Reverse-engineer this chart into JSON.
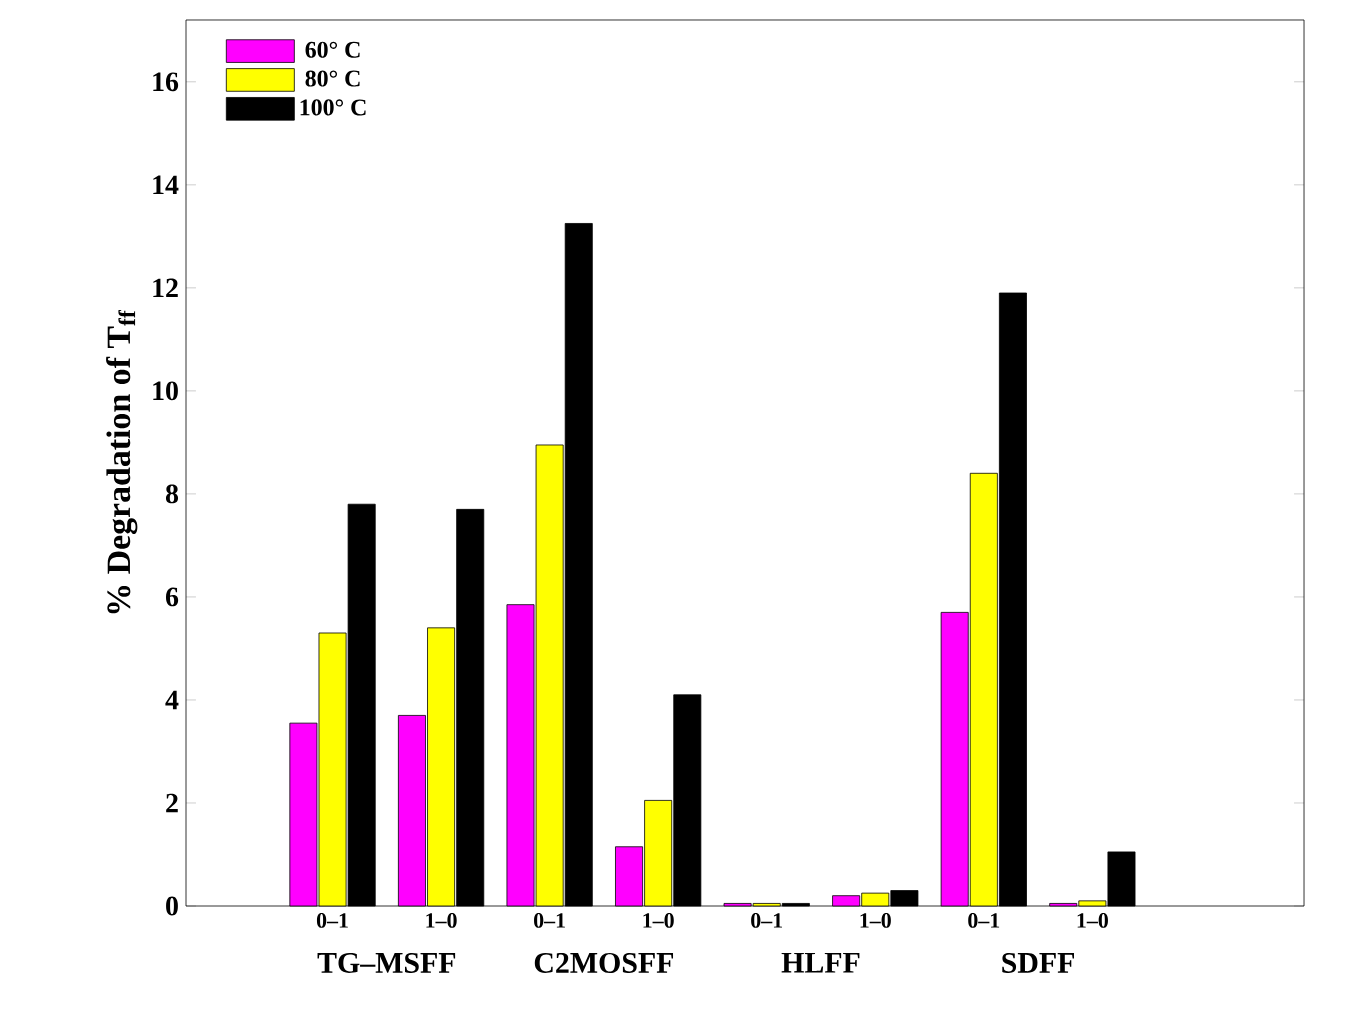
{
  "chart_data": {
    "type": "bar",
    "ylabel": "% Degradation of T$_{ff}$",
    "categories": [
      "0–1",
      "1–0",
      "0–1",
      "1–0",
      "0–1",
      "1–0",
      "0–1",
      "1–0"
    ],
    "series": [
      {
        "name": "60° C",
        "color": "#ff00ff",
        "values": [
          3.55,
          3.7,
          5.85,
          1.15,
          0.05,
          0.2,
          5.7,
          0.05
        ]
      },
      {
        "name": "80° C",
        "color": "#ffff00",
        "values": [
          5.3,
          5.4,
          8.95,
          2.05,
          0.05,
          0.25,
          8.4,
          0.1
        ]
      },
      {
        "name": "100° C",
        "color": "#000000",
        "values": [
          7.8,
          7.7,
          13.25,
          4.1,
          0.05,
          0.3,
          11.9,
          1.05
        ]
      }
    ],
    "ylim": [
      0,
      17.2
    ],
    "yticks": [
      0,
      2,
      4,
      6,
      8,
      10,
      12,
      14,
      16
    ],
    "legend": "top left",
    "annotations": [
      "TG–MSFF",
      "C2MOSFF",
      "HLFF",
      "SDFF"
    ]
  }
}
